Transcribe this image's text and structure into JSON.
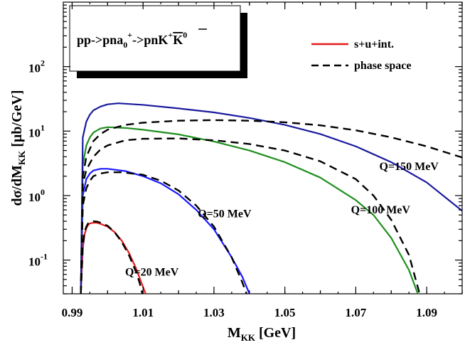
{
  "chart_data": {
    "type": "line",
    "title": "pp->pna0+->pnK+K0",
    "xlabel": "M_KK [GeV]",
    "ylabel": "dσ/dM_KK [μb/GeV]",
    "xlim": [
      0.9875,
      1.1
    ],
    "ylim": [
      0.03,
      1000
    ],
    "yscale": "log",
    "grid": false,
    "legend_position": "top-right",
    "x_ticks": [
      {
        "value": 0.99,
        "label": "0.99"
      },
      {
        "value": 1.01,
        "label": "1.01"
      },
      {
        "value": 1.03,
        "label": "1.03"
      },
      {
        "value": 1.05,
        "label": "1.05"
      },
      {
        "value": 1.07,
        "label": "1.07"
      },
      {
        "value": 1.09,
        "label": "1.09"
      }
    ],
    "y_ticks": [
      {
        "value": 0.1,
        "base": "10",
        "exp": "-1"
      },
      {
        "value": 1,
        "base": "10",
        "exp": "0"
      },
      {
        "value": 10,
        "base": "10",
        "exp": "1"
      },
      {
        "value": 100,
        "base": "10",
        "exp": "2"
      }
    ],
    "legend": [
      {
        "label": "s+u+int.",
        "color": "#e41a1c",
        "style": "solid"
      },
      {
        "label": "phase space",
        "color": "#000000",
        "style": "dashed"
      }
    ],
    "annotations": [
      {
        "text": "Q=20 MeV",
        "x": 1.0125,
        "y": 0.057
      },
      {
        "text": "Q=50 MeV",
        "x": 1.033,
        "y": 0.46
      },
      {
        "text": "Q=100 MeV",
        "x": 1.077,
        "y": 0.53
      },
      {
        "text": "Q=150 MeV",
        "x": 1.085,
        "y": 2.5
      }
    ],
    "series": [
      {
        "color": "#e41a1c",
        "style": "solid",
        "x": [
          0.99245,
          0.993,
          0.9935,
          0.994,
          0.9945,
          0.995,
          0.996,
          0.997,
          0.998,
          1.0,
          1.002,
          1.004,
          1.006,
          1.008,
          1.0095,
          1.01074
        ],
        "y": [
          0.03,
          0.15,
          0.25,
          0.31,
          0.35,
          0.37,
          0.38,
          0.378,
          0.365,
          0.33,
          0.27,
          0.2,
          0.13,
          0.075,
          0.045,
          0.03
        ]
      },
      {
        "color": "#000000",
        "style": "dashed",
        "x": [
          0.99245,
          0.993,
          0.9935,
          0.994,
          0.9945,
          0.995,
          0.996,
          0.997,
          0.998,
          1.0,
          1.002,
          1.004,
          1.006,
          1.008,
          1.009,
          1.0098
        ],
        "y": [
          0.03,
          0.16,
          0.27,
          0.33,
          0.37,
          0.39,
          0.4,
          0.395,
          0.38,
          0.34,
          0.27,
          0.19,
          0.12,
          0.066,
          0.045,
          0.03
        ]
      },
      {
        "color": "#1a1aff",
        "style": "solid",
        "x": [
          0.99245,
          0.993,
          0.994,
          0.995,
          0.996,
          0.998,
          1.0,
          1.005,
          1.01,
          1.015,
          1.02,
          1.025,
          1.03,
          1.035,
          1.038,
          1.0395,
          1.04
        ],
        "y": [
          0.03,
          1.0,
          1.8,
          2.2,
          2.45,
          2.6,
          2.6,
          2.4,
          2.0,
          1.55,
          1.05,
          0.6,
          0.3,
          0.11,
          0.055,
          0.035,
          0.03
        ]
      },
      {
        "color": "#000000",
        "style": "dashed",
        "x": [
          0.99245,
          0.993,
          0.994,
          0.995,
          0.996,
          0.998,
          1.0,
          1.004,
          1.01,
          1.015,
          1.02,
          1.025,
          1.03,
          1.035,
          1.038,
          1.0392
        ],
        "y": [
          0.03,
          0.7,
          1.3,
          1.7,
          2.0,
          2.2,
          2.3,
          2.3,
          2.1,
          1.7,
          1.2,
          0.7,
          0.33,
          0.11,
          0.045,
          0.03
        ]
      },
      {
        "color": "#1f8f1f",
        "style": "solid",
        "x": [
          0.99245,
          0.993,
          0.994,
          0.995,
          0.996,
          0.998,
          1.0,
          1.005,
          1.01,
          1.02,
          1.03,
          1.04,
          1.05,
          1.06,
          1.07,
          1.075,
          1.08,
          1.085,
          1.0875
        ],
        "y": [
          0.03,
          3.0,
          6.0,
          8.0,
          9.5,
          11.0,
          11.5,
          11.2,
          10.5,
          8.9,
          6.9,
          5.0,
          3.3,
          1.9,
          0.85,
          0.5,
          0.22,
          0.07,
          0.03
        ]
      },
      {
        "color": "#000000",
        "style": "dashed",
        "x": [
          0.99245,
          0.993,
          0.994,
          0.996,
          0.998,
          1.0,
          1.005,
          1.01,
          1.02,
          1.03,
          1.04,
          1.05,
          1.06,
          1.07,
          1.075,
          1.08,
          1.085,
          1.088
        ],
        "y": [
          0.03,
          1.5,
          2.5,
          4.0,
          5.2,
          6.0,
          7.2,
          7.6,
          7.7,
          7.2,
          6.3,
          5.0,
          3.4,
          1.8,
          1.0,
          0.42,
          0.12,
          0.03
        ]
      },
      {
        "color": "#1a1a9e",
        "style": "solid",
        "x": [
          0.99245,
          0.993,
          0.994,
          0.995,
          0.996,
          0.998,
          1.0,
          1.003,
          1.01,
          1.02,
          1.03,
          1.04,
          1.05,
          1.06,
          1.07,
          1.08,
          1.09,
          1.1
        ],
        "y": [
          0.03,
          8.0,
          14.0,
          18.0,
          21.0,
          24.0,
          26.0,
          27.0,
          25.5,
          22.5,
          19.5,
          16.0,
          12.5,
          9.0,
          5.8,
          3.3,
          1.6,
          0.58
        ]
      },
      {
        "color": "#000000",
        "style": "dashed",
        "x": [
          0.99245,
          0.993,
          0.994,
          0.996,
          0.998,
          1.0,
          1.005,
          1.01,
          1.02,
          1.03,
          1.04,
          1.05,
          1.06,
          1.07,
          1.08,
          1.09,
          1.1
        ],
        "y": [
          0.03,
          2.0,
          4.0,
          7.0,
          9.0,
          10.5,
          12.5,
          13.5,
          14.5,
          14.8,
          14.5,
          13.7,
          12.3,
          10.3,
          8.0,
          5.8,
          3.9
        ]
      }
    ]
  }
}
